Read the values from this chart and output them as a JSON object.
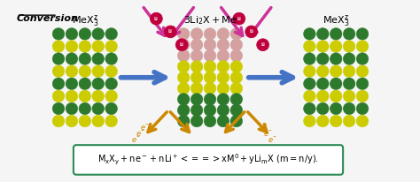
{
  "title": "Conversion",
  "label_left": "MeXᴿ₃",
  "label_center": "3Li₂X + Me",
  "label_right": "MeXᴿ₃",
  "equation": "MₓXᵧ + ne⁻ + nLi⁺ <==> xM⁰ + yLiₘX (m = n/y).",
  "bg_color": "#f5f5f5",
  "box_bg": "#ffffff",
  "box_border": "#2e8b57",
  "arrow_color": "#4472c4",
  "li_color": "#c0003c",
  "electron_color": "#cc6600",
  "pink_arrow_color": "#cc3399",
  "orange_arrow_color": "#cc8800",
  "green_dark": "#2d7a2d",
  "green_yellow": "#cccc00",
  "pink_layer": "#d4a0a0"
}
